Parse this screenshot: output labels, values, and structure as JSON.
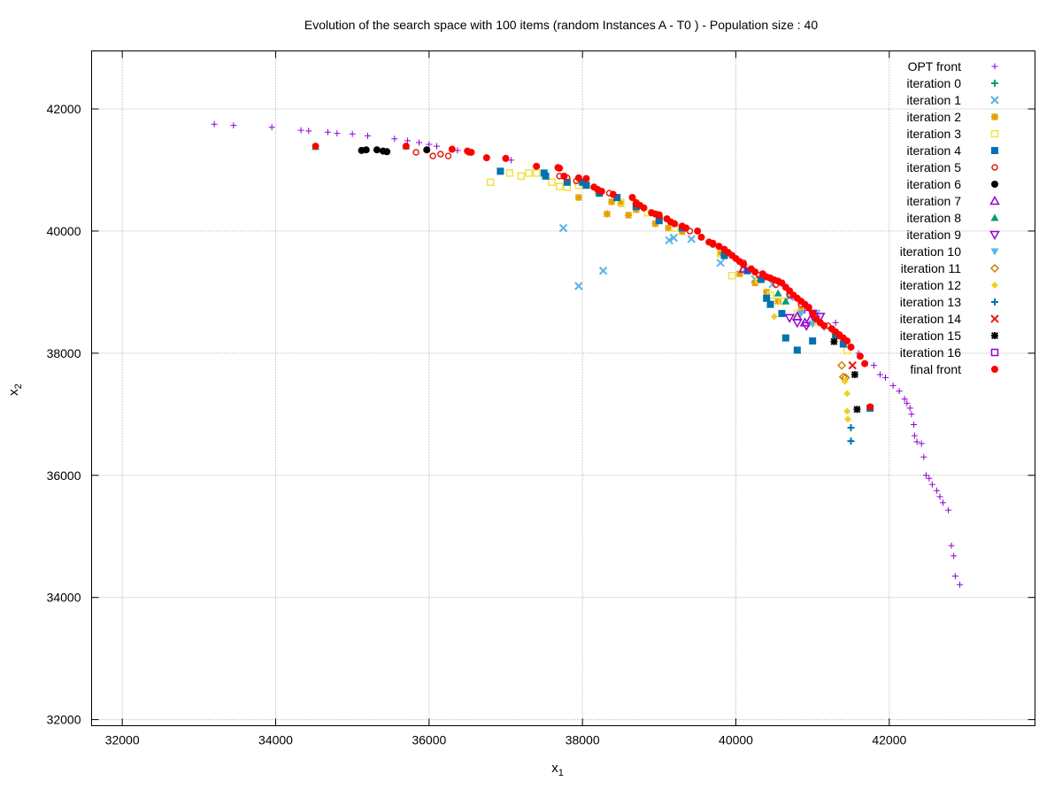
{
  "chart_data": {
    "type": "scatter",
    "title": "Evolution of the search space with 100 items (random Instances A - T0 ) - Population size : 40",
    "xlabel_main": "x",
    "xlabel_sub": "1",
    "ylabel_main": "x",
    "ylabel_sub": "2",
    "xlim": [
      31600,
      43900
    ],
    "ylim": [
      31900,
      42950
    ],
    "xticks": [
      32000,
      34000,
      36000,
      38000,
      40000,
      42000
    ],
    "yticks": [
      32000,
      34000,
      36000,
      38000,
      40000,
      42000
    ],
    "grid": true,
    "legend_position": "top-right",
    "series": [
      {
        "name": "OPT front",
        "color": "#9400d3",
        "marker": "plus-small",
        "points": [
          [
            33200,
            41750
          ],
          [
            33450,
            41730
          ],
          [
            33950,
            41700
          ],
          [
            34330,
            41650
          ],
          [
            34430,
            41640
          ],
          [
            34680,
            41620
          ],
          [
            34800,
            41600
          ],
          [
            35000,
            41590
          ],
          [
            35200,
            41560
          ],
          [
            35550,
            41510
          ],
          [
            35720,
            41480
          ],
          [
            35870,
            41450
          ],
          [
            36000,
            41420
          ],
          [
            36100,
            41390
          ],
          [
            36370,
            41320
          ],
          [
            37070,
            41160
          ],
          [
            40900,
            38700
          ],
          [
            41300,
            38500
          ],
          [
            41600,
            38000
          ],
          [
            41800,
            37800
          ],
          [
            41880,
            37650
          ],
          [
            41950,
            37600
          ],
          [
            42050,
            37470
          ],
          [
            42130,
            37380
          ],
          [
            42200,
            37250
          ],
          [
            42230,
            37180
          ],
          [
            42270,
            37100
          ],
          [
            42290,
            37000
          ],
          [
            42320,
            36830
          ],
          [
            42330,
            36650
          ],
          [
            42360,
            36550
          ],
          [
            42420,
            36520
          ],
          [
            42450,
            36300
          ],
          [
            42480,
            36000
          ],
          [
            42520,
            35950
          ],
          [
            42560,
            35850
          ],
          [
            42620,
            35750
          ],
          [
            42660,
            35650
          ],
          [
            42700,
            35550
          ],
          [
            42770,
            35430
          ],
          [
            42810,
            34850
          ],
          [
            42840,
            34680
          ],
          [
            42860,
            34350
          ],
          [
            42920,
            34210
          ]
        ]
      },
      {
        "name": "iteration 0",
        "color": "#009e73",
        "marker": "plus",
        "points": []
      },
      {
        "name": "iteration 1",
        "color": "#56b4e9",
        "marker": "cross",
        "points": [
          [
            37750,
            40050
          ],
          [
            37950,
            39100
          ],
          [
            38270,
            39350
          ],
          [
            39130,
            39850
          ],
          [
            39190,
            39890
          ],
          [
            39420,
            39870
          ],
          [
            39800,
            39480
          ],
          [
            40250,
            39210
          ],
          [
            40480,
            39130
          ],
          [
            40700,
            38920
          ],
          [
            41050,
            38650
          ]
        ]
      },
      {
        "name": "iteration 2",
        "color": "#e69f00",
        "marker": "star",
        "points": [
          [
            37950,
            40550
          ],
          [
            38320,
            40280
          ],
          [
            38380,
            40480
          ],
          [
            38500,
            40450
          ],
          [
            38600,
            40260
          ],
          [
            38700,
            40350
          ],
          [
            38950,
            40120
          ],
          [
            39000,
            40200
          ],
          [
            39120,
            40050
          ],
          [
            39300,
            39990
          ],
          [
            39800,
            39650
          ],
          [
            40050,
            39300
          ],
          [
            40250,
            39150
          ],
          [
            40400,
            39000
          ],
          [
            40550,
            38850
          ],
          [
            40850,
            38700
          ]
        ]
      },
      {
        "name": "iteration 3",
        "color": "#f0e442",
        "marker": "square-open",
        "points": [
          [
            36800,
            40800
          ],
          [
            37050,
            40950
          ],
          [
            37200,
            40900
          ],
          [
            37300,
            40950
          ],
          [
            37400,
            40950
          ],
          [
            37600,
            40800
          ],
          [
            37700,
            40730
          ],
          [
            37800,
            40720
          ],
          [
            37950,
            40750
          ],
          [
            38200,
            40650
          ],
          [
            38500,
            40470
          ],
          [
            38700,
            40450
          ],
          [
            38850,
            40300
          ],
          [
            39000,
            40250
          ],
          [
            39200,
            40050
          ],
          [
            39800,
            39630
          ],
          [
            39950,
            39270
          ],
          [
            40100,
            39400
          ],
          [
            40300,
            39200
          ],
          [
            40450,
            38950
          ],
          [
            40600,
            38850
          ],
          [
            40800,
            38650
          ],
          [
            41000,
            38500
          ],
          [
            41300,
            38300
          ],
          [
            41450,
            38050
          ]
        ]
      },
      {
        "name": "iteration 4",
        "color": "#0072b2",
        "marker": "square",
        "points": [
          [
            36930,
            40980
          ],
          [
            37500,
            40950
          ],
          [
            37520,
            40900
          ],
          [
            37800,
            40800
          ],
          [
            38000,
            40800
          ],
          [
            38050,
            40750
          ],
          [
            38220,
            40620
          ],
          [
            38450,
            40550
          ],
          [
            38700,
            40400
          ],
          [
            39000,
            40170
          ],
          [
            39300,
            40050
          ],
          [
            39850,
            39600
          ],
          [
            40150,
            39350
          ],
          [
            40330,
            39210
          ],
          [
            40400,
            38900
          ],
          [
            40450,
            38800
          ],
          [
            40600,
            38650
          ],
          [
            40650,
            38250
          ],
          [
            40800,
            38050
          ],
          [
            41000,
            38200
          ],
          [
            41300,
            38300
          ],
          [
            41400,
            38150
          ],
          [
            41750,
            37100
          ]
        ]
      },
      {
        "name": "iteration 5",
        "color": "#e51e10",
        "marker": "circle-open",
        "points": [
          [
            35830,
            41290
          ],
          [
            36050,
            41230
          ],
          [
            36150,
            41260
          ],
          [
            36250,
            41230
          ],
          [
            36520,
            41290
          ],
          [
            37700,
            40900
          ],
          [
            37800,
            40870
          ],
          [
            37920,
            40820
          ],
          [
            38150,
            40720
          ],
          [
            38350,
            40620
          ],
          [
            38700,
            40470
          ],
          [
            39000,
            40270
          ],
          [
            39400,
            40000
          ],
          [
            39700,
            39780
          ],
          [
            40100,
            39480
          ],
          [
            40300,
            39280
          ],
          [
            40520,
            39120
          ],
          [
            40700,
            38950
          ],
          [
            40850,
            38800
          ],
          [
            41000,
            38650
          ],
          [
            41200,
            38450
          ],
          [
            41350,
            38280
          ],
          [
            41500,
            38100
          ]
        ]
      },
      {
        "name": "iteration 6",
        "color": "#000000",
        "marker": "circle",
        "points": [
          [
            35120,
            41320
          ],
          [
            35180,
            41330
          ],
          [
            35320,
            41330
          ],
          [
            35400,
            41310
          ],
          [
            35450,
            41300
          ],
          [
            35970,
            41330
          ]
        ]
      },
      {
        "name": "iteration 7",
        "color": "#9400d3",
        "marker": "triangle-open",
        "points": [
          [
            40100,
            39380
          ],
          [
            40800,
            38600
          ],
          [
            40900,
            38500
          ],
          [
            40970,
            38550
          ]
        ]
      },
      {
        "name": "iteration 8",
        "color": "#009e73",
        "marker": "triangle",
        "points": [
          [
            34520,
            41380
          ],
          [
            35700,
            41390
          ],
          [
            40550,
            38980
          ],
          [
            40650,
            38850
          ]
        ]
      },
      {
        "name": "iteration 9",
        "color": "#9400d3",
        "marker": "triangle-down-open",
        "points": [
          [
            40700,
            38580
          ],
          [
            40800,
            38500
          ],
          [
            40920,
            38450
          ],
          [
            41000,
            38650
          ],
          [
            41100,
            38600
          ]
        ]
      },
      {
        "name": "iteration 10",
        "color": "#56b4e9",
        "marker": "triangle-down",
        "points": [
          [
            40850,
            38650
          ],
          [
            41000,
            38480
          ],
          [
            41150,
            38420
          ],
          [
            41250,
            38380
          ]
        ]
      },
      {
        "name": "iteration 11",
        "color": "#d08000",
        "marker": "diamond-open",
        "points": [
          [
            41380,
            37800
          ],
          [
            41400,
            37610
          ],
          [
            41430,
            37600
          ]
        ]
      },
      {
        "name": "iteration 12",
        "color": "#f0d020",
        "marker": "diamond",
        "points": [
          [
            40500,
            38600
          ],
          [
            41420,
            37540
          ],
          [
            41450,
            37340
          ],
          [
            41450,
            37050
          ],
          [
            41460,
            36920
          ]
        ]
      },
      {
        "name": "iteration 13",
        "color": "#0072b2",
        "marker": "plus",
        "points": [
          [
            41500,
            36780
          ],
          [
            41500,
            36560
          ]
        ]
      },
      {
        "name": "iteration 14",
        "color": "#e51e10",
        "marker": "cross",
        "points": [
          [
            41520,
            37800
          ]
        ]
      },
      {
        "name": "iteration 15",
        "color": "#000000",
        "marker": "star",
        "points": [
          [
            41280,
            38190
          ],
          [
            41550,
            37650
          ],
          [
            41580,
            37080
          ]
        ]
      },
      {
        "name": "iteration 16",
        "color": "#9400d3",
        "marker": "square-open",
        "points": []
      },
      {
        "name": "final front",
        "color": "#ff0000",
        "marker": "circle",
        "points": [
          [
            34520,
            41390
          ],
          [
            35700,
            41390
          ],
          [
            36300,
            41340
          ],
          [
            36500,
            41310
          ],
          [
            36550,
            41290
          ],
          [
            36750,
            41200
          ],
          [
            37000,
            41190
          ],
          [
            37400,
            41060
          ],
          [
            37680,
            41040
          ],
          [
            37700,
            41030
          ],
          [
            37760,
            40900
          ],
          [
            37950,
            40870
          ],
          [
            38050,
            40860
          ],
          [
            38150,
            40720
          ],
          [
            38200,
            40680
          ],
          [
            38250,
            40650
          ],
          [
            38400,
            40600
          ],
          [
            38650,
            40550
          ],
          [
            38700,
            40450
          ],
          [
            38750,
            40420
          ],
          [
            38800,
            40380
          ],
          [
            38900,
            40300
          ],
          [
            38950,
            40280
          ],
          [
            39000,
            40250
          ],
          [
            39100,
            40200
          ],
          [
            39150,
            40150
          ],
          [
            39200,
            40120
          ],
          [
            39300,
            40080
          ],
          [
            39350,
            40050
          ],
          [
            39500,
            40000
          ],
          [
            39550,
            39900
          ],
          [
            39650,
            39820
          ],
          [
            39700,
            39800
          ],
          [
            39780,
            39750
          ],
          [
            39850,
            39700
          ],
          [
            39900,
            39650
          ],
          [
            39950,
            39600
          ],
          [
            40000,
            39550
          ],
          [
            40050,
            39500
          ],
          [
            40100,
            39450
          ],
          [
            40200,
            39380
          ],
          [
            40250,
            39330
          ],
          [
            40350,
            39300
          ],
          [
            40400,
            39250
          ],
          [
            40450,
            39230
          ],
          [
            40500,
            39200
          ],
          [
            40550,
            39180
          ],
          [
            40600,
            39150
          ],
          [
            40650,
            39080
          ],
          [
            40700,
            39020
          ],
          [
            40750,
            38950
          ],
          [
            40800,
            38900
          ],
          [
            40850,
            38850
          ],
          [
            40900,
            38800
          ],
          [
            40950,
            38750
          ],
          [
            41000,
            38650
          ],
          [
            41050,
            38560
          ],
          [
            41100,
            38500
          ],
          [
            41150,
            38450
          ],
          [
            41250,
            38400
          ],
          [
            41300,
            38350
          ],
          [
            41350,
            38300
          ],
          [
            41400,
            38250
          ],
          [
            41450,
            38200
          ],
          [
            41500,
            38100
          ],
          [
            41620,
            37950
          ],
          [
            41680,
            37830
          ],
          [
            41750,
            37120
          ]
        ]
      }
    ]
  }
}
